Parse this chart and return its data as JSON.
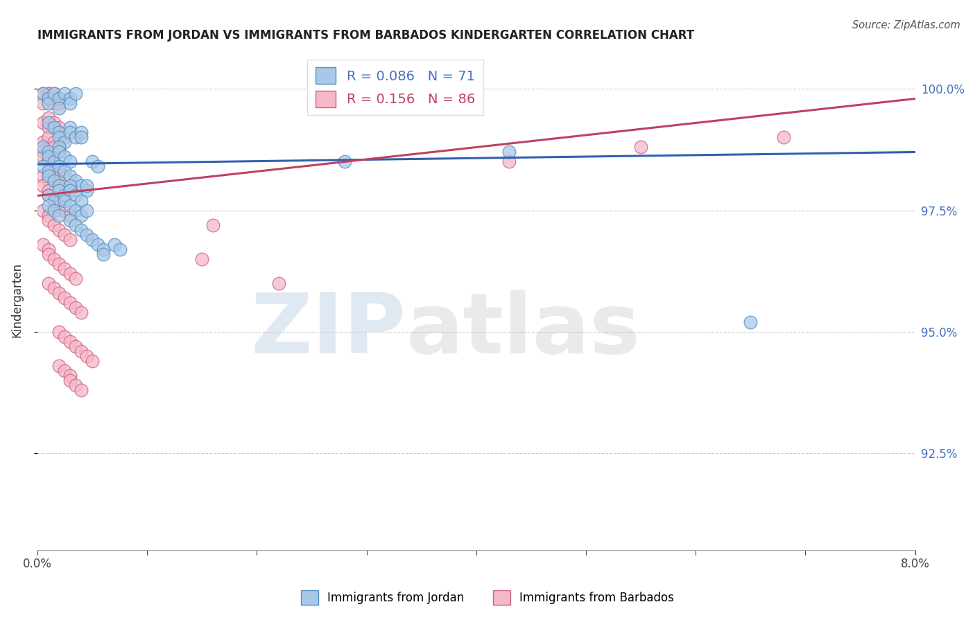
{
  "title": "IMMIGRANTS FROM JORDAN VS IMMIGRANTS FROM BARBADOS KINDERGARTEN CORRELATION CHART",
  "source": "Source: ZipAtlas.com",
  "ylabel": "Kindergarten",
  "ytick_labels": [
    "100.0%",
    "97.5%",
    "95.0%",
    "92.5%"
  ],
  "ytick_values": [
    1.0,
    0.975,
    0.95,
    0.925
  ],
  "xlim": [
    0.0,
    0.08
  ],
  "ylim": [
    0.905,
    1.008
  ],
  "jordan_color": "#a8c8e8",
  "barbados_color": "#f4b8c8",
  "jordan_edge": "#5090c0",
  "barbados_edge": "#d06080",
  "jordan_R": 0.086,
  "jordan_N": 71,
  "barbados_R": 0.156,
  "barbados_N": 86,
  "trend_jordan_color": "#3060b0",
  "trend_barbados_color": "#c04060",
  "legend_label_jordan": "Immigrants from Jordan",
  "legend_label_barbados": "Immigrants from Barbados",
  "watermark_zip": "ZIP",
  "watermark_atlas": "atlas",
  "jordan_x": [
    0.0005,
    0.001,
    0.001,
    0.0015,
    0.002,
    0.002,
    0.0025,
    0.003,
    0.003,
    0.0035,
    0.001,
    0.0015,
    0.002,
    0.002,
    0.0025,
    0.003,
    0.003,
    0.0035,
    0.004,
    0.004,
    0.0005,
    0.001,
    0.001,
    0.0015,
    0.002,
    0.002,
    0.0025,
    0.003,
    0.0005,
    0.001,
    0.001,
    0.0015,
    0.002,
    0.0025,
    0.003,
    0.0035,
    0.004,
    0.0045,
    0.005,
    0.0055,
    0.001,
    0.0015,
    0.002,
    0.002,
    0.0025,
    0.003,
    0.003,
    0.0035,
    0.004,
    0.0045,
    0.001,
    0.0015,
    0.002,
    0.0025,
    0.003,
    0.0035,
    0.004,
    0.0045,
    0.003,
    0.0035,
    0.004,
    0.0045,
    0.005,
    0.0055,
    0.006,
    0.006,
    0.007,
    0.0075,
    0.028,
    0.043,
    0.065
  ],
  "jordan_y": [
    0.999,
    0.998,
    0.997,
    0.999,
    0.998,
    0.996,
    0.999,
    0.998,
    0.997,
    0.999,
    0.993,
    0.992,
    0.991,
    0.99,
    0.989,
    0.992,
    0.991,
    0.99,
    0.991,
    0.99,
    0.988,
    0.987,
    0.986,
    0.985,
    0.988,
    0.987,
    0.986,
    0.985,
    0.984,
    0.983,
    0.982,
    0.981,
    0.984,
    0.983,
    0.982,
    0.981,
    0.98,
    0.979,
    0.985,
    0.984,
    0.978,
    0.977,
    0.98,
    0.979,
    0.978,
    0.98,
    0.979,
    0.978,
    0.977,
    0.98,
    0.976,
    0.975,
    0.974,
    0.977,
    0.976,
    0.975,
    0.974,
    0.975,
    0.973,
    0.972,
    0.971,
    0.97,
    0.969,
    0.968,
    0.967,
    0.966,
    0.968,
    0.967,
    0.985,
    0.987,
    0.952
  ],
  "barbados_x": [
    0.0005,
    0.001,
    0.001,
    0.0005,
    0.001,
    0.001,
    0.0015,
    0.0015,
    0.002,
    0.002,
    0.0005,
    0.001,
    0.001,
    0.0015,
    0.002,
    0.002,
    0.0025,
    0.0005,
    0.001,
    0.001,
    0.0015,
    0.002,
    0.0005,
    0.001,
    0.001,
    0.0015,
    0.002,
    0.0005,
    0.001,
    0.0015,
    0.002,
    0.0005,
    0.001,
    0.001,
    0.0015,
    0.002,
    0.0025,
    0.003,
    0.0005,
    0.001,
    0.001,
    0.0015,
    0.002,
    0.0025,
    0.003,
    0.0005,
    0.001,
    0.001,
    0.0015,
    0.002,
    0.0025,
    0.003,
    0.0005,
    0.001,
    0.001,
    0.0015,
    0.002,
    0.0025,
    0.003,
    0.0035,
    0.001,
    0.0015,
    0.002,
    0.0025,
    0.003,
    0.0035,
    0.004,
    0.002,
    0.0025,
    0.003,
    0.0035,
    0.004,
    0.0045,
    0.005,
    0.002,
    0.0025,
    0.003,
    0.003,
    0.0035,
    0.004,
    0.015,
    0.016,
    0.022,
    0.043,
    0.055,
    0.068
  ],
  "barbados_y": [
    0.999,
    0.999,
    0.998,
    0.997,
    0.999,
    0.998,
    0.997,
    0.999,
    0.998,
    0.997,
    0.993,
    0.992,
    0.994,
    0.993,
    0.992,
    0.991,
    0.99,
    0.989,
    0.988,
    0.99,
    0.989,
    0.988,
    0.987,
    0.986,
    0.985,
    0.988,
    0.987,
    0.986,
    0.985,
    0.984,
    0.983,
    0.982,
    0.981,
    0.983,
    0.982,
    0.981,
    0.98,
    0.979,
    0.98,
    0.979,
    0.978,
    0.977,
    0.976,
    0.975,
    0.974,
    0.975,
    0.974,
    0.973,
    0.972,
    0.971,
    0.97,
    0.969,
    0.968,
    0.967,
    0.966,
    0.965,
    0.964,
    0.963,
    0.962,
    0.961,
    0.96,
    0.959,
    0.958,
    0.957,
    0.956,
    0.955,
    0.954,
    0.95,
    0.949,
    0.948,
    0.947,
    0.946,
    0.945,
    0.944,
    0.943,
    0.942,
    0.941,
    0.94,
    0.939,
    0.938,
    0.965,
    0.972,
    0.96,
    0.985,
    0.988,
    0.99
  ]
}
